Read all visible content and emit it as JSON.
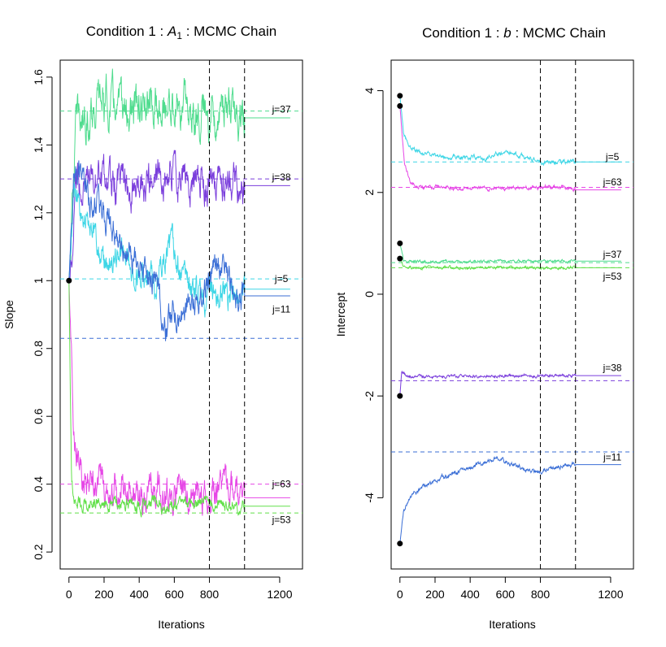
{
  "chart_data": [
    {
      "type": "line",
      "title_prefix": "Condition 1 : ",
      "title_symbol": "A",
      "title_subscript": "1",
      "title_suffix": " : MCMC Chain",
      "xlabel": "Iterations",
      "ylabel": "Slope",
      "xlim": [
        -50,
        1330
      ],
      "ylim": [
        0.15,
        1.65
      ],
      "x_ticks": [
        0,
        200,
        400,
        600,
        800,
        1200
      ],
      "y_ticks": [
        0.2,
        0.4,
        0.6,
        0.8,
        1.0,
        1.2,
        1.4,
        1.6
      ],
      "vlines": [
        800,
        1000
      ],
      "start_points": [
        1.0
      ],
      "reference_lines": [
        {
          "value": 1.5,
          "color": "#4fdc8e"
        },
        {
          "value": 1.3,
          "color": "#7b3fdc"
        },
        {
          "value": 1.005,
          "color": "#3ed6e6"
        },
        {
          "value": 0.83,
          "color": "#3b6fd6"
        },
        {
          "value": 0.4,
          "color": "#e647e6"
        },
        {
          "value": 0.315,
          "color": "#62e04a"
        }
      ],
      "series": [
        {
          "label": "j=37",
          "color": "#4fdc8e",
          "start": 1.0,
          "settle": 1.49,
          "rate": 18,
          "noise": 0.045,
          "final": 1.48,
          "label_y": 1.505,
          "knots": [
            [
              0,
              1.0
            ],
            [
              40,
              1.45
            ],
            [
              80,
              1.48
            ],
            [
              150,
              1.52
            ],
            [
              200,
              1.53
            ],
            [
              300,
              1.5
            ],
            [
              400,
              1.49
            ],
            [
              500,
              1.51
            ],
            [
              600,
              1.52
            ],
            [
              700,
              1.5
            ],
            [
              800,
              1.5
            ],
            [
              900,
              1.5
            ],
            [
              1000,
              1.48
            ]
          ]
        },
        {
          "label": "j=38",
          "color": "#7b3fdc",
          "start": 1.0,
          "settle": 1.3,
          "rate": 14,
          "noise": 0.04,
          "final": 1.28,
          "label_y": 1.305,
          "knots": [
            [
              0,
              1.0
            ],
            [
              40,
              1.28
            ],
            [
              100,
              1.3
            ],
            [
              200,
              1.29
            ],
            [
              300,
              1.28
            ],
            [
              400,
              1.3
            ],
            [
              500,
              1.29
            ],
            [
              600,
              1.31
            ],
            [
              700,
              1.3
            ],
            [
              800,
              1.29
            ],
            [
              900,
              1.28
            ],
            [
              1000,
              1.28
            ]
          ]
        },
        {
          "label": "j=5",
          "color": "#3ed6e6",
          "start": 1.0,
          "settle": 1.3,
          "rate": 10,
          "noise": 0.03,
          "final": 0.975,
          "label_y": 1.005,
          "knots": [
            [
              0,
              1.0
            ],
            [
              30,
              1.28
            ],
            [
              80,
              1.2
            ],
            [
              150,
              1.12
            ],
            [
              200,
              1.05
            ],
            [
              300,
              1.08
            ],
            [
              400,
              1.02
            ],
            [
              500,
              0.98
            ],
            [
              560,
              1.1
            ],
            [
              600,
              1.08
            ],
            [
              650,
              1.0
            ],
            [
              700,
              0.96
            ],
            [
              800,
              0.96
            ],
            [
              900,
              0.95
            ],
            [
              1000,
              0.975
            ]
          ]
        },
        {
          "label": "j=11",
          "color": "#3b6fd6",
          "start": 1.0,
          "settle": 1.35,
          "rate": 10,
          "noise": 0.03,
          "final": 0.955,
          "label_y": 0.915,
          "knots": [
            [
              0,
              1.0
            ],
            [
              30,
              1.33
            ],
            [
              80,
              1.3
            ],
            [
              150,
              1.22
            ],
            [
              200,
              1.2
            ],
            [
              300,
              1.1
            ],
            [
              400,
              1.04
            ],
            [
              500,
              0.98
            ],
            [
              550,
              0.86
            ],
            [
              600,
              0.9
            ],
            [
              700,
              0.94
            ],
            [
              800,
              1.0
            ],
            [
              870,
              1.05
            ],
            [
              900,
              1.0
            ],
            [
              950,
              0.96
            ],
            [
              1000,
              0.955
            ]
          ]
        },
        {
          "label": "j=63",
          "color": "#e647e6",
          "start": 1.0,
          "settle": 0.38,
          "rate": 18,
          "noise": 0.035,
          "final": 0.36,
          "label_y": 0.4,
          "knots": [
            [
              0,
              1.0
            ],
            [
              25,
              0.6
            ],
            [
              60,
              0.42
            ],
            [
              100,
              0.38
            ],
            [
              200,
              0.4
            ],
            [
              300,
              0.38
            ],
            [
              400,
              0.37
            ],
            [
              500,
              0.39
            ],
            [
              600,
              0.38
            ],
            [
              700,
              0.38
            ],
            [
              800,
              0.37
            ],
            [
              900,
              0.39
            ],
            [
              1000,
              0.36
            ]
          ]
        },
        {
          "label": "j=53",
          "color": "#62e04a",
          "start": 1.0,
          "settle": 0.34,
          "rate": 8,
          "noise": 0.014,
          "final": 0.335,
          "label_y": 0.295,
          "knots": [
            [
              0,
              1.0
            ],
            [
              15,
              0.4
            ],
            [
              40,
              0.34
            ],
            [
              200,
              0.34
            ],
            [
              400,
              0.34
            ],
            [
              600,
              0.34
            ],
            [
              800,
              0.34
            ],
            [
              1000,
              0.335
            ]
          ]
        }
      ]
    },
    {
      "type": "line",
      "title_prefix": "Condition 1 : ",
      "title_symbol": "b",
      "title_subscript": "",
      "title_suffix": " : MCMC Chain",
      "xlabel": "Iterations",
      "ylabel": "Intercept",
      "xlim": [
        -50,
        1330
      ],
      "ylim": [
        -5.4,
        4.6
      ],
      "x_ticks": [
        0,
        200,
        400,
        600,
        800,
        1200
      ],
      "y_ticks": [
        -4,
        -2,
        0,
        2,
        4
      ],
      "vlines": [
        800,
        1000
      ],
      "start_points": [
        3.9,
        3.7,
        1.0,
        0.7,
        -2.0,
        -4.9
      ],
      "reference_lines": [
        {
          "value": 2.6,
          "color": "#3ed6e6"
        },
        {
          "value": 2.1,
          "color": "#e647e6"
        },
        {
          "value": 0.62,
          "color": "#4fdc8e"
        },
        {
          "value": 0.52,
          "color": "#62e04a"
        },
        {
          "value": -1.7,
          "color": "#7b3fdc"
        },
        {
          "value": -3.1,
          "color": "#3b6fd6"
        }
      ],
      "series": [
        {
          "label": "j=5",
          "color": "#3ed6e6",
          "start": 3.9,
          "settle": 2.6,
          "rate": 25,
          "noise": 0.03,
          "final": 2.6,
          "label_y": 2.7,
          "knots": [
            [
              0,
              3.9
            ],
            [
              20,
              3.2
            ],
            [
              50,
              2.9
            ],
            [
              100,
              2.8
            ],
            [
              200,
              2.72
            ],
            [
              300,
              2.7
            ],
            [
              400,
              2.7
            ],
            [
              500,
              2.68
            ],
            [
              600,
              2.8
            ],
            [
              700,
              2.7
            ],
            [
              800,
              2.6
            ],
            [
              900,
              2.58
            ],
            [
              1000,
              2.6
            ]
          ]
        },
        {
          "label": "j=63",
          "color": "#e647e6",
          "start": 3.7,
          "settle": 2.1,
          "rate": 18,
          "noise": 0.025,
          "final": 2.05,
          "label_y": 2.2,
          "knots": [
            [
              0,
              3.7
            ],
            [
              25,
              2.6
            ],
            [
              60,
              2.2
            ],
            [
              100,
              2.12
            ],
            [
              300,
              2.1
            ],
            [
              500,
              2.08
            ],
            [
              700,
              2.1
            ],
            [
              800,
              2.1
            ],
            [
              900,
              2.12
            ],
            [
              1000,
              2.05
            ]
          ]
        },
        {
          "label": "j=37",
          "color": "#4fdc8e",
          "start": 1.0,
          "settle": 0.64,
          "rate": 8,
          "noise": 0.02,
          "final": 0.65,
          "label_y": 0.78,
          "knots": [
            [
              0,
              1.0
            ],
            [
              20,
              0.66
            ],
            [
              50,
              0.64
            ],
            [
              1000,
              0.65
            ]
          ]
        },
        {
          "label": "j=53",
          "color": "#62e04a",
          "start": 0.7,
          "settle": 0.52,
          "rate": 8,
          "noise": 0.02,
          "final": 0.52,
          "label_y": 0.35,
          "knots": [
            [
              0,
              0.7
            ],
            [
              20,
              0.54
            ],
            [
              50,
              0.52
            ],
            [
              1000,
              0.52
            ]
          ]
        },
        {
          "label": "j=38",
          "color": "#7b3fdc",
          "start": -2.0,
          "settle": -1.62,
          "rate": 8,
          "noise": 0.02,
          "final": -1.6,
          "label_y": -1.45,
          "knots": [
            [
              0,
              -2.0
            ],
            [
              10,
              -1.5
            ],
            [
              40,
              -1.62
            ],
            [
              1000,
              -1.6
            ]
          ]
        },
        {
          "label": "j=11",
          "color": "#3b6fd6",
          "start": -4.9,
          "settle": -3.4,
          "rate": 40,
          "noise": 0.03,
          "final": -3.35,
          "label_y": -3.2,
          "knots": [
            [
              0,
              -4.9
            ],
            [
              20,
              -4.3
            ],
            [
              60,
              -3.95
            ],
            [
              150,
              -3.75
            ],
            [
              250,
              -3.6
            ],
            [
              350,
              -3.48
            ],
            [
              450,
              -3.35
            ],
            [
              500,
              -3.3
            ],
            [
              550,
              -3.2
            ],
            [
              650,
              -3.35
            ],
            [
              750,
              -3.5
            ],
            [
              800,
              -3.48
            ],
            [
              900,
              -3.4
            ],
            [
              1000,
              -3.35
            ]
          ]
        }
      ]
    }
  ]
}
